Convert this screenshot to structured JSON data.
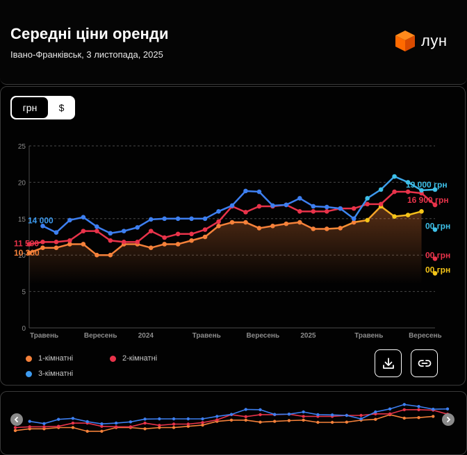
{
  "header": {
    "title": "Середні ціни оренди",
    "subtitle": "Івано-Франківськ, 3 листопада, 2025",
    "logo_text": "лун",
    "logo_icon": "cube-logo-icon",
    "logo_color": "#ff6a00"
  },
  "currency_toggle": {
    "options": [
      "грн",
      "$"
    ],
    "selected": "грн"
  },
  "chart_data": {
    "type": "line",
    "x": [
      "2023-05",
      "2023-06",
      "2023-07",
      "2023-08",
      "2023-09",
      "2023-10",
      "2023-11",
      "2023-12",
      "2024-01",
      "2024-02",
      "2024-03",
      "2024-04",
      "2024-05",
      "2024-06",
      "2024-07",
      "2024-08",
      "2024-09",
      "2024-10",
      "2024-11",
      "2024-12",
      "2025-01",
      "2025-02",
      "2025-03",
      "2025-04",
      "2025-05",
      "2025-06",
      "2025-07",
      "2025-08",
      "2025-09",
      "2025-10",
      "2025-11"
    ],
    "x_tick_labels": [
      {
        "x": "2023-05",
        "label": "Травень"
      },
      {
        "x": "2023-09",
        "label": "Вересень"
      },
      {
        "x": "2024-01",
        "label": "2024"
      },
      {
        "x": "2024-05",
        "label": "Травень"
      },
      {
        "x": "2024-09",
        "label": "Вересень"
      },
      {
        "x": "2025-01",
        "label": "2025"
      },
      {
        "x": "2025-05",
        "label": "Травень"
      },
      {
        "x": "2025-09",
        "label": "Вересень"
      }
    ],
    "ylim": [
      0,
      25
    ],
    "yticks": [
      0,
      5,
      10,
      15,
      20,
      25
    ],
    "grid": true,
    "legend": "bottom-left",
    "series": [
      {
        "name": "1-кімнатні",
        "color": "#f5813a",
        "end_color": "#f5c518",
        "values": [
          10.3,
          11.0,
          11.0,
          11.5,
          11.5,
          10.0,
          10.0,
          11.5,
          11.5,
          11.0,
          11.5,
          11.5,
          12.0,
          12.5,
          14.0,
          14.5,
          14.5,
          13.7,
          14.0,
          14.3,
          14.5,
          13.6,
          13.6,
          13.7,
          14.5,
          14.8,
          16.7,
          15.3,
          15.5,
          16.0,
          null
        ]
      },
      {
        "name": "2-кімнатні",
        "color": "#e8334a",
        "end_color": "#e8334a",
        "values": [
          11.5,
          11.8,
          11.8,
          12.0,
          13.3,
          13.3,
          12.0,
          11.8,
          11.8,
          13.3,
          12.4,
          12.9,
          12.9,
          13.5,
          14.6,
          16.7,
          15.9,
          16.7,
          16.7,
          16.9,
          16.0,
          16.0,
          16.0,
          16.4,
          16.4,
          17.0,
          17.0,
          18.7,
          18.7,
          18.5,
          16.9
        ]
      },
      {
        "name": "3-кімнатні",
        "color": "#3d7ff0",
        "end_color": "#3ec0e8",
        "values": [
          null,
          14.0,
          13.1,
          14.8,
          15.2,
          13.9,
          13.0,
          13.3,
          13.8,
          14.9,
          15.0,
          15.0,
          15.0,
          15.0,
          16.0,
          16.8,
          18.8,
          18.7,
          16.8,
          16.9,
          17.8,
          16.7,
          16.6,
          16.4,
          15.0,
          17.8,
          19.0,
          20.8,
          20.0,
          18.9,
          19.0
        ]
      }
    ],
    "start_labels": [
      {
        "series": "3-кімнатні",
        "label": "14 000",
        "color": "#3d9bf0"
      },
      {
        "series": "2-кімнатні",
        "label": "11 500",
        "color": "#e8334a"
      },
      {
        "series": "1-кімнатні",
        "label": "10 300",
        "color": "#f5813a"
      }
    ],
    "end_labels": [
      {
        "series": "3-кімнатні",
        "label": "19 000 грн",
        "color": "#3ec0e8",
        "value": 19.0
      },
      {
        "series": "2-кімнатні",
        "label": "16 900 грн",
        "color": "#e8334a",
        "value": 16.9
      },
      {
        "series": "3-кімнатні",
        "label": "00 грн",
        "color": "#3ec0e8",
        "value": 13.5
      },
      {
        "series": "2-кімнатні",
        "label": "00 грн",
        "color": "#e8334a",
        "value": 9.5
      },
      {
        "series": "1-кімнатні",
        "label": "00 грн",
        "color": "#f5c518",
        "value": 7.5
      }
    ]
  },
  "legend_items": [
    {
      "label": "1-кімнатні",
      "color": "#f5813a"
    },
    {
      "label": "2-кімнатні",
      "color": "#e8334a"
    },
    {
      "label": "3-кімнатні",
      "color": "#3d7ff0"
    }
  ],
  "actions": {
    "download_icon": "download-icon",
    "link_icon": "link-icon"
  },
  "navigator": {
    "left_icon": "chevron-left-icon",
    "right_icon": "chevron-right-icon"
  }
}
